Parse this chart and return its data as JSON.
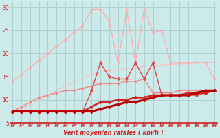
{
  "xlabel": "Vent moyen/en rafales ( km/h )",
  "background_color": "#cceaea",
  "grid_color": "#aacccc",
  "x": [
    0,
    1,
    2,
    3,
    4,
    5,
    6,
    7,
    8,
    9,
    10,
    11,
    12,
    13,
    14,
    15,
    16,
    17,
    18,
    19,
    20,
    21,
    22,
    23
  ],
  "ylim": [
    5,
    31
  ],
  "xlim": [
    -0.3,
    23.3
  ],
  "yticks": [
    5,
    10,
    15,
    20,
    25,
    30
  ],
  "series": [
    {
      "y": [
        7.5,
        8.0,
        9.0,
        10.0,
        11.0,
        12.0,
        13.0,
        13.8,
        14.8,
        15.5,
        16.0,
        16.3,
        16.5,
        16.7,
        17.0,
        17.2,
        17.4,
        17.5,
        17.6,
        17.7,
        17.8,
        17.9,
        18.0,
        18.1
      ],
      "color": "#ffbbbb",
      "linewidth": 0.8,
      "marker": null,
      "zorder": 1
    },
    {
      "y": [
        14.0,
        15.5,
        17.0,
        18.5,
        20.0,
        21.5,
        23.0,
        24.5,
        26.0,
        29.5,
        29.5,
        27.0,
        18.0,
        29.5,
        18.0,
        29.5,
        24.5,
        25.0,
        18.0,
        18.0,
        18.0,
        18.0,
        18.0,
        14.5
      ],
      "color": "#ffaaaa",
      "linewidth": 0.9,
      "marker": "D",
      "markersize": 2.0,
      "zorder": 2
    },
    {
      "y": [
        7.5,
        8.5,
        9.5,
        10.5,
        11.0,
        11.5,
        12.0,
        12.0,
        12.5,
        13.0,
        13.5,
        13.5,
        13.5,
        14.0,
        14.0,
        14.5,
        11.5,
        11.5,
        11.5,
        12.0,
        12.0,
        12.0,
        12.0,
        12.0
      ],
      "color": "#ee8888",
      "linewidth": 1.0,
      "marker": "D",
      "markersize": 2.0,
      "zorder": 3
    },
    {
      "y": [
        7.5,
        7.5,
        7.5,
        7.5,
        7.5,
        7.5,
        7.5,
        7.5,
        7.5,
        12.0,
        18.0,
        15.0,
        14.5,
        14.5,
        18.0,
        14.5,
        18.0,
        11.0,
        11.0,
        11.0,
        11.0,
        11.0,
        11.5,
        12.0
      ],
      "color": "#dd4444",
      "linewidth": 1.0,
      "marker": "D",
      "markersize": 2.5,
      "zorder": 5
    },
    {
      "y": [
        7.5,
        7.5,
        7.5,
        7.5,
        7.5,
        7.5,
        7.5,
        7.5,
        7.5,
        8.5,
        9.5,
        9.5,
        10.0,
        10.0,
        10.5,
        10.5,
        11.0,
        11.0,
        11.0,
        11.0,
        11.5,
        11.5,
        11.5,
        12.0
      ],
      "color": "#cc2222",
      "linewidth": 1.8,
      "marker": "D",
      "markersize": 2.5,
      "zorder": 6
    },
    {
      "y": [
        7.5,
        7.5,
        7.5,
        7.5,
        7.5,
        7.5,
        7.5,
        7.5,
        7.5,
        7.5,
        8.0,
        8.5,
        9.0,
        9.5,
        9.5,
        10.0,
        10.5,
        11.0,
        11.0,
        11.0,
        11.0,
        11.5,
        12.0,
        12.0
      ],
      "color": "#bb0000",
      "linewidth": 2.2,
      "marker": "D",
      "markersize": 2.5,
      "zorder": 7
    }
  ],
  "arrow_color": "#cc2222",
  "axis_color": "#cc2222",
  "label_color": "#cc2222",
  "tick_color": "#cc2222"
}
